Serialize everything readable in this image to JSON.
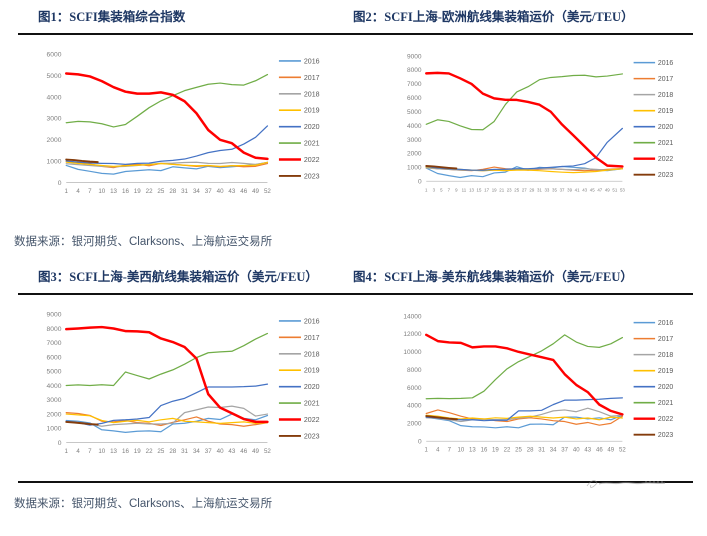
{
  "figures": [
    {
      "title": "图1：SCFI集装箱综合指数"
    },
    {
      "title": "图2：SCFI上海-欧洲航线集装箱运价（美元/TEU）"
    },
    {
      "title": "图3：SCFI上海-美西航线集装箱运价（美元/FEU）"
    },
    {
      "title": "图4：SCFI上海-美东航线集装箱运价（美元/FEU）"
    }
  ],
  "sources": {
    "row1": "数据来源：银河期货、Clarksons、上海航运交易所",
    "row2": "数据来源：银河期货、Clarksons、上海航运交易所"
  },
  "footer": {
    "watermark_icon": "signature-scribble"
  },
  "colors": {
    "title_text": "#1F3864",
    "source_text": "#44546A",
    "rule": "#111111",
    "axis": "#BFBFBF",
    "tick_label": "#7F7F7F",
    "legend_label": "#595959"
  },
  "chart_data": [
    {
      "type": "line",
      "title": "SCFI集装箱综合指数",
      "xlabel": "",
      "ylabel": "",
      "legend_position": "right",
      "grid": false,
      "xmax": 52,
      "xticks": [
        1,
        4,
        7,
        10,
        13,
        16,
        19,
        22,
        25,
        28,
        31,
        34,
        37,
        40,
        43,
        46,
        49,
        52
      ],
      "ylim": [
        0,
        6000
      ],
      "ytick_step": 1000,
      "sample_weeks": [
        1,
        4,
        7,
        10,
        13,
        16,
        19,
        22,
        25,
        28,
        31,
        34,
        37,
        40,
        43,
        46,
        49,
        52
      ],
      "series": [
        {
          "name": "2016",
          "color": "#5B9BD5",
          "values": [
            800,
            620,
            530,
            430,
            400,
            520,
            560,
            600,
            560,
            740,
            690,
            640,
            760,
            700,
            740,
            790,
            840,
            950
          ]
        },
        {
          "name": "2017",
          "color": "#ED7D31",
          "values": [
            980,
            930,
            870,
            760,
            700,
            820,
            860,
            790,
            900,
            860,
            810,
            760,
            790,
            740,
            790,
            740,
            760,
            890
          ]
        },
        {
          "name": "2018",
          "color": "#A5A5A5",
          "values": [
            880,
            840,
            800,
            760,
            740,
            760,
            800,
            850,
            900,
            910,
            940,
            950,
            900,
            890,
            940,
            900,
            850,
            940
          ]
        },
        {
          "name": "2019",
          "color": "#FFC000",
          "values": [
            960,
            900,
            850,
            800,
            760,
            790,
            810,
            840,
            890,
            850,
            810,
            790,
            800,
            760,
            790,
            800,
            810,
            950
          ]
        },
        {
          "name": "2020",
          "color": "#4472C4",
          "values": [
            1010,
            960,
            920,
            900,
            890,
            850,
            900,
            910,
            1000,
            1040,
            1100,
            1240,
            1400,
            1500,
            1560,
            1800,
            2120,
            2650
          ]
        },
        {
          "name": "2021",
          "color": "#70AD47",
          "values": [
            2800,
            2860,
            2840,
            2750,
            2600,
            2720,
            3100,
            3500,
            3820,
            4060,
            4300,
            4450,
            4600,
            4650,
            4580,
            4560,
            4760,
            5050
          ]
        },
        {
          "name": "2022",
          "color": "#FF0000",
          "width": 2.6,
          "values": [
            5100,
            5060,
            4960,
            4740,
            4460,
            4250,
            4160,
            4160,
            4220,
            4100,
            3800,
            3240,
            2460,
            2000,
            1840,
            1400,
            1160,
            1110
          ]
        },
        {
          "name": "2023",
          "color": "#843C0C",
          "width": 2,
          "x": [
            1,
            3,
            5,
            7,
            9
          ],
          "values": [
            1080,
            1050,
            1010,
            980,
            960
          ]
        }
      ]
    },
    {
      "type": "line",
      "title": "SCFI上海-欧洲航线集装箱运价（美元/TEU）",
      "xlabel": "",
      "ylabel": "",
      "legend_position": "right",
      "grid": false,
      "xmax": 53,
      "xticks": [
        1,
        3,
        5,
        7,
        9,
        11,
        13,
        15,
        17,
        19,
        21,
        23,
        25,
        27,
        29,
        31,
        33,
        35,
        37,
        39,
        41,
        43,
        45,
        47,
        49,
        51,
        53
      ],
      "ylim": [
        0,
        9000
      ],
      "ytick_step": 1000,
      "sample_weeks": [
        1,
        4,
        7,
        10,
        13,
        16,
        19,
        22,
        25,
        28,
        31,
        34,
        37,
        40,
        43,
        46,
        49,
        53
      ],
      "series": [
        {
          "name": "2016",
          "color": "#5B9BD5",
          "values": [
            950,
            560,
            400,
            270,
            400,
            330,
            600,
            660,
            1050,
            800,
            1000,
            950,
            1060,
            1000,
            950,
            800,
            760,
            900
          ]
        },
        {
          "name": "2017",
          "color": "#ED7D31",
          "values": [
            1000,
            900,
            850,
            800,
            760,
            850,
            1020,
            900,
            850,
            800,
            860,
            900,
            850,
            800,
            760,
            800,
            850,
            920
          ]
        },
        {
          "name": "2018",
          "color": "#A5A5A5",
          "values": [
            950,
            900,
            850,
            800,
            790,
            750,
            800,
            800,
            850,
            850,
            900,
            890,
            850,
            840,
            890,
            850,
            800,
            900
          ]
        },
        {
          "name": "2019",
          "color": "#FFC000",
          "values": [
            1020,
            950,
            900,
            850,
            800,
            760,
            800,
            760,
            800,
            800,
            760,
            700,
            650,
            620,
            660,
            700,
            800,
            900
          ]
        },
        {
          "name": "2020",
          "color": "#4472C4",
          "values": [
            1060,
            950,
            900,
            850,
            800,
            790,
            850,
            860,
            900,
            900,
            950,
            1000,
            1060,
            1100,
            1260,
            1700,
            2800,
            3800
          ]
        },
        {
          "name": "2021",
          "color": "#70AD47",
          "values": [
            4100,
            4420,
            4300,
            3980,
            3720,
            3700,
            4300,
            5520,
            6420,
            6800,
            7300,
            7460,
            7520,
            7600,
            7620,
            7500,
            7560,
            7720
          ]
        },
        {
          "name": "2022",
          "color": "#FF0000",
          "width": 2.6,
          "values": [
            7760,
            7790,
            7750,
            7400,
            7000,
            6300,
            5960,
            5860,
            5850,
            5700,
            5500,
            5000,
            4080,
            3300,
            2500,
            1700,
            1120,
            1060
          ]
        },
        {
          "name": "2023",
          "color": "#843C0C",
          "width": 2,
          "x": [
            1,
            3,
            5,
            7,
            9
          ],
          "values": [
            1100,
            1060,
            1010,
            960,
            920
          ]
        }
      ]
    },
    {
      "type": "line",
      "title": "SCFI上海-美西航线集装箱运价（美元/FEU）",
      "xlabel": "",
      "ylabel": "",
      "legend_position": "right",
      "grid": false,
      "xmax": 52,
      "xticks": [
        1,
        4,
        7,
        10,
        13,
        16,
        19,
        22,
        25,
        28,
        31,
        34,
        37,
        40,
        43,
        46,
        49,
        52
      ],
      "ylim": [
        0,
        9000
      ],
      "ytick_step": 1000,
      "sample_weeks": [
        1,
        4,
        7,
        10,
        13,
        16,
        19,
        22,
        25,
        28,
        31,
        34,
        37,
        40,
        43,
        46,
        49,
        52
      ],
      "series": [
        {
          "name": "2016",
          "color": "#5B9BD5",
          "values": [
            1550,
            1500,
            1380,
            900,
            820,
            720,
            800,
            820,
            760,
            1300,
            1360,
            1500,
            1700,
            1620,
            2000,
            1700,
            1600,
            1900
          ]
        },
        {
          "name": "2017",
          "color": "#ED7D31",
          "values": [
            2100,
            2040,
            1900,
            1500,
            1460,
            1560,
            1400,
            1350,
            1200,
            1420,
            1600,
            1800,
            1500,
            1300,
            1260,
            1150,
            1260,
            1400
          ]
        },
        {
          "name": "2018",
          "color": "#A5A5A5",
          "values": [
            1450,
            1400,
            1300,
            1150,
            1260,
            1300,
            1360,
            1300,
            1300,
            1360,
            2100,
            2300,
            2500,
            2460,
            2560,
            2400,
            1860,
            2000
          ]
        },
        {
          "name": "2019",
          "color": "#FFC000",
          "values": [
            2000,
            1950,
            1880,
            1550,
            1400,
            1500,
            1560,
            1450,
            1600,
            1700,
            1500,
            1460,
            1400,
            1350,
            1400,
            1460,
            1350,
            1400
          ]
        },
        {
          "name": "2020",
          "color": "#4472C4",
          "values": [
            1500,
            1400,
            1220,
            1350,
            1560,
            1600,
            1660,
            1760,
            2600,
            2900,
            3100,
            3500,
            3900,
            3900,
            3900,
            3920,
            3960,
            4100
          ]
        },
        {
          "name": "2021",
          "color": "#70AD47",
          "values": [
            4000,
            4050,
            4000,
            4060,
            4000,
            4950,
            4700,
            4460,
            4800,
            5100,
            5500,
            5960,
            6300,
            6360,
            6400,
            6800,
            7260,
            7650
          ]
        },
        {
          "name": "2022",
          "color": "#FF0000",
          "width": 2.6,
          "values": [
            7950,
            8000,
            8060,
            8100,
            8000,
            7820,
            7800,
            7740,
            7300,
            7050,
            6700,
            5900,
            3400,
            2450,
            2060,
            1650,
            1460,
            1450
          ]
        },
        {
          "name": "2023",
          "color": "#843C0C",
          "width": 2,
          "x": [
            1,
            3,
            5,
            7,
            9
          ],
          "values": [
            1450,
            1410,
            1360,
            1300,
            1260
          ]
        }
      ]
    },
    {
      "type": "line",
      "title": "SCFI上海-美东航线集装箱运价（美元/FEU）",
      "xlabel": "",
      "ylabel": "",
      "legend_position": "right",
      "grid": false,
      "xmax": 52,
      "xticks": [
        1,
        4,
        7,
        10,
        13,
        16,
        19,
        22,
        25,
        28,
        31,
        34,
        37,
        40,
        43,
        46,
        49,
        52
      ],
      "ylim": [
        0,
        14000
      ],
      "ytick_step": 2000,
      "sample_weeks": [
        1,
        4,
        7,
        10,
        13,
        16,
        19,
        22,
        25,
        28,
        31,
        34,
        37,
        40,
        43,
        46,
        49,
        52
      ],
      "series": [
        {
          "name": "2016",
          "color": "#5B9BD5",
          "values": [
            2700,
            2500,
            2300,
            1750,
            1620,
            1600,
            1500,
            1620,
            1500,
            1900,
            1920,
            1850,
            2700,
            2700,
            2500,
            2620,
            2400,
            2900
          ]
        },
        {
          "name": "2017",
          "color": "#ED7D31",
          "values": [
            3100,
            3500,
            3200,
            2800,
            2500,
            2500,
            2300,
            2200,
            2500,
            2620,
            2500,
            2300,
            2200,
            1900,
            2100,
            1800,
            2000,
            2800
          ]
        },
        {
          "name": "2018",
          "color": "#A5A5A5",
          "values": [
            2620,
            2560,
            2400,
            2200,
            2400,
            2460,
            2400,
            2400,
            2600,
            2700,
            3000,
            3400,
            3500,
            3300,
            3700,
            3300,
            2800,
            2900
          ]
        },
        {
          "name": "2019",
          "color": "#FFC000",
          "values": [
            2900,
            2800,
            2600,
            2500,
            2600,
            2500,
            2620,
            2560,
            2700,
            2800,
            2700,
            2600,
            2700,
            2500,
            2600,
            2400,
            2700,
            2600
          ]
        },
        {
          "name": "2020",
          "color": "#4472C4",
          "values": [
            2700,
            2600,
            2500,
            2400,
            2400,
            2300,
            2360,
            2350,
            3400,
            3400,
            3460,
            4100,
            4600,
            4600,
            4660,
            4700,
            4800,
            4850
          ]
        },
        {
          "name": "2021",
          "color": "#70AD47",
          "values": [
            4750,
            4800,
            4760,
            4800,
            4860,
            5600,
            6900,
            8100,
            8900,
            9500,
            10100,
            10900,
            11900,
            11100,
            10600,
            10500,
            10900,
            11600
          ]
        },
        {
          "name": "2022",
          "color": "#FF0000",
          "width": 2.6,
          "values": [
            11900,
            11200,
            11050,
            11000,
            10500,
            10600,
            10600,
            10400,
            10000,
            9700,
            9400,
            9100,
            7500,
            6300,
            5500,
            4100,
            3400,
            3000
          ]
        },
        {
          "name": "2023",
          "color": "#843C0C",
          "width": 2,
          "x": [
            1,
            3,
            5,
            7,
            9
          ],
          "values": [
            2820,
            2720,
            2620,
            2520,
            2460
          ]
        }
      ]
    }
  ]
}
